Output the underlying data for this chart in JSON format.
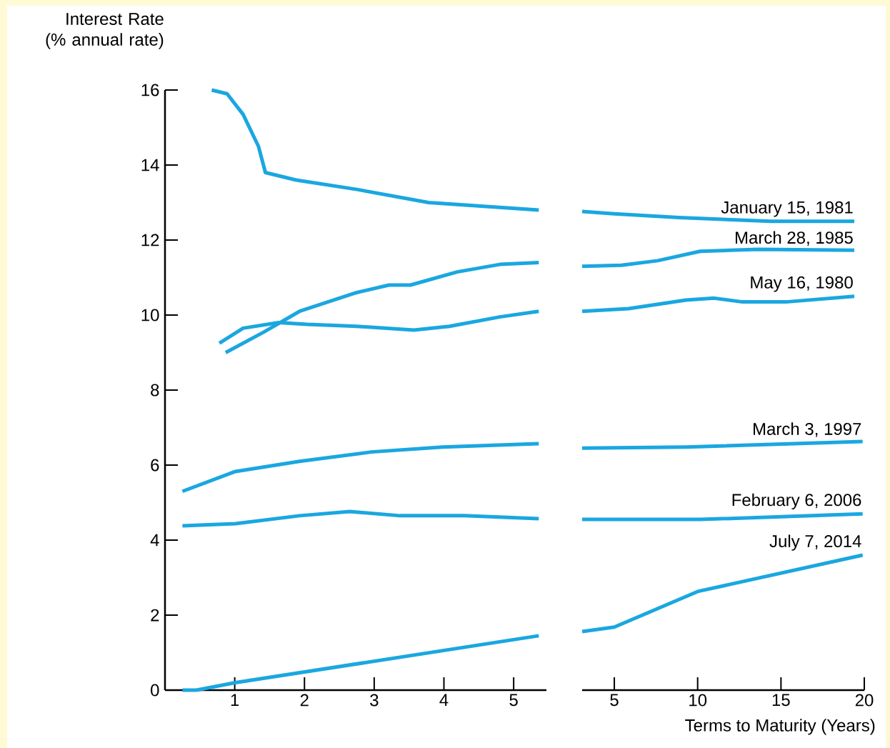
{
  "chart_data": [
    {
      "type": "line",
      "ylabel": "Interest Rate (% annual rate)",
      "xlim": [
        0,
        5.47
      ],
      "xticks": [
        1,
        2,
        3,
        4,
        5
      ],
      "ylim": [
        0,
        16
      ],
      "yticks": [
        0,
        2,
        4,
        6,
        8,
        10,
        12,
        14,
        16
      ],
      "line_style": "solid",
      "series": [
        {
          "color": "#1aa7e0",
          "x": [
            0.67,
            0.89,
            1.12,
            1.34,
            1.44,
            1.88,
            2.75,
            3.78,
            5.36
          ],
          "values": [
            16,
            15.9,
            15.35,
            14.5,
            13.8,
            13.6,
            13.35,
            13.0,
            12.8
          ]
        },
        {
          "color": "#1aa7e0",
          "x": [
            0.87,
            1.42,
            1.93,
            2.75,
            3.21,
            3.52,
            4.19,
            4.8,
            5.36
          ],
          "values": [
            9.0,
            9.55,
            10.1,
            10.6,
            10.8,
            10.8,
            11.15,
            11.35,
            11.4
          ]
        },
        {
          "color": "#1aa7e0",
          "x": [
            0.78,
            1.12,
            1.63,
            2.04,
            2.75,
            3.57,
            4.08,
            4.8,
            5.36
          ],
          "values": [
            9.25,
            9.65,
            9.8,
            9.75,
            9.7,
            9.6,
            9.7,
            9.95,
            10.1
          ]
        },
        {
          "color": "#1aa7e0",
          "x": [
            0.25,
            1.01,
            1.93,
            2.96,
            3.98,
            5.36
          ],
          "values": [
            5.3,
            5.83,
            6.1,
            6.35,
            6.48,
            6.57
          ]
        },
        {
          "color": "#1aa7e0",
          "x": [
            0.25,
            1.01,
            1.93,
            2.65,
            3.37,
            4.29,
            5.36
          ],
          "values": [
            4.38,
            4.44,
            4.65,
            4.76,
            4.65,
            4.65,
            4.57
          ]
        },
        {
          "color": "#1aa7e0",
          "x": [
            0.25,
            0.45,
            1.01,
            5.36
          ],
          "values": [
            0,
            0,
            0.2,
            1.45
          ]
        }
      ]
    },
    {
      "type": "line",
      "xlabel": "Terms to Maturity (Years)",
      "xlim": [
        3.07,
        20
      ],
      "xticks": [
        5,
        10,
        15,
        20
      ],
      "ylim": [
        0,
        16
      ],
      "tick_labels": "x",
      "line_style": "solid",
      "series": [
        {
          "name": "January 15, 1981",
          "color": "#1aa7e0",
          "x": [
            3.07,
            5,
            8.86,
            14.4,
            19.4
          ],
          "values": [
            12.76,
            12.7,
            12.6,
            12.5,
            12.5
          ]
        },
        {
          "name": "March 28, 1985",
          "color": "#1aa7e0",
          "x": [
            3.07,
            5.43,
            7.6,
            10.15,
            13.6,
            19.4
          ],
          "values": [
            11.3,
            11.33,
            11.45,
            11.7,
            11.75,
            11.73
          ]
        },
        {
          "name": "May 16, 1980",
          "color": "#1aa7e0",
          "x": [
            3.07,
            5.86,
            9.3,
            11,
            12.7,
            15.3,
            19.4
          ],
          "values": [
            10.1,
            10.17,
            10.4,
            10.45,
            10.35,
            10.35,
            10.5
          ]
        },
        {
          "name": "March 3, 1997",
          "color": "#1aa7e0",
          "x": [
            3.07,
            9.3,
            19.9
          ],
          "values": [
            6.45,
            6.48,
            6.63
          ]
        },
        {
          "name": "February 6, 2006",
          "color": "#1aa7e0",
          "x": [
            3.07,
            10.15,
            19.9
          ],
          "values": [
            4.55,
            4.55,
            4.7
          ]
        },
        {
          "name": "July 7, 2014",
          "color": "#1aa7e0",
          "x": [
            3.07,
            5,
            10,
            19.9
          ],
          "values": [
            1.56,
            1.68,
            2.63,
            3.6
          ]
        }
      ]
    }
  ]
}
